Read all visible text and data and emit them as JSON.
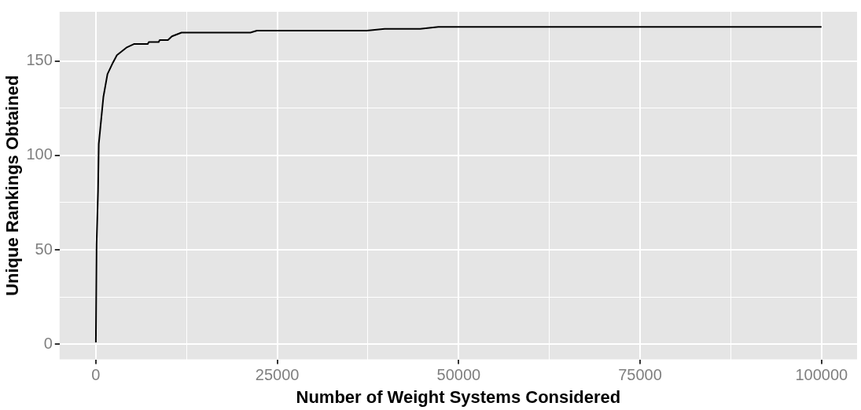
{
  "chart_data": {
    "type": "line",
    "xlabel": "Number of Weight Systems Considered",
    "ylabel": "Unique Rankings Obtained",
    "x": [
      0,
      100,
      300,
      400,
      1040,
      1600,
      2340,
      2900,
      4200,
      5300,
      7150,
      7300,
      8660,
      8800,
      9930,
      10480,
      11800,
      21300,
      22200,
      37340,
      39800,
      44700,
      47200,
      100000
    ],
    "series": [
      {
        "color": "#000000",
        "values": [
          1,
          53,
          81,
          106,
          131,
          143,
          149,
          153,
          157,
          159,
          159,
          160,
          160,
          161,
          161,
          163,
          165,
          165,
          166,
          166,
          167,
          167,
          168,
          168
        ]
      }
    ],
    "xlim": [
      -5000,
      104900
    ],
    "ylim": [
      -8,
      176
    ],
    "xticks": [
      0,
      {
        "value": 12500,
        "label": null
      },
      25000,
      {
        "value": 37500,
        "label": null
      },
      50000,
      {
        "value": 62500,
        "label": null
      },
      75000,
      {
        "value": 87500,
        "label": null
      },
      100000
    ],
    "yticks": [
      0,
      {
        "value": 25,
        "label": null
      },
      50,
      {
        "value": 75,
        "label": null
      },
      100,
      {
        "value": 125,
        "label": null
      },
      150
    ],
    "grid": true,
    "legend": false,
    "marker": "none",
    "line_style": "solid"
  }
}
